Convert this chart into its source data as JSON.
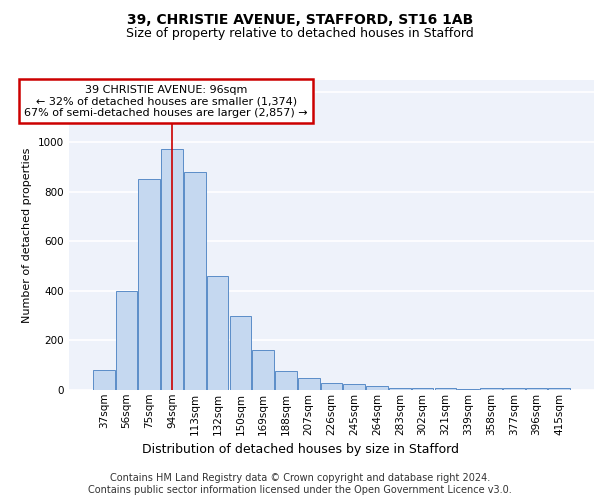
{
  "title1": "39, CHRISTIE AVENUE, STAFFORD, ST16 1AB",
  "title2": "Size of property relative to detached houses in Stafford",
  "xlabel": "Distribution of detached houses by size in Stafford",
  "ylabel": "Number of detached properties",
  "categories": [
    "37sqm",
    "56sqm",
    "75sqm",
    "94sqm",
    "113sqm",
    "132sqm",
    "150sqm",
    "169sqm",
    "188sqm",
    "207sqm",
    "226sqm",
    "245sqm",
    "264sqm",
    "283sqm",
    "302sqm",
    "321sqm",
    "339sqm",
    "358sqm",
    "377sqm",
    "396sqm",
    "415sqm"
  ],
  "values": [
    80,
    400,
    850,
    970,
    880,
    460,
    300,
    160,
    75,
    50,
    30,
    25,
    15,
    10,
    10,
    10,
    5,
    10,
    10,
    10,
    10
  ],
  "bar_color": "#c5d8f0",
  "bar_edge_color": "#5b8dc8",
  "highlight_bar_index": 3,
  "highlight_line_color": "#cc0000",
  "annotation_text": "39 CHRISTIE AVENUE: 96sqm\n← 32% of detached houses are smaller (1,374)\n67% of semi-detached houses are larger (2,857) →",
  "annotation_box_color": "#ffffff",
  "annotation_box_edge_color": "#cc0000",
  "ylim": [
    0,
    1250
  ],
  "yticks": [
    0,
    200,
    400,
    600,
    800,
    1000,
    1200
  ],
  "background_color": "#eef2fa",
  "grid_color": "#ffffff",
  "footer_text": "Contains HM Land Registry data © Crown copyright and database right 2024.\nContains public sector information licensed under the Open Government Licence v3.0.",
  "title1_fontsize": 10,
  "title2_fontsize": 9,
  "xlabel_fontsize": 9,
  "ylabel_fontsize": 8,
  "tick_fontsize": 7.5,
  "annotation_fontsize": 8,
  "footer_fontsize": 7
}
